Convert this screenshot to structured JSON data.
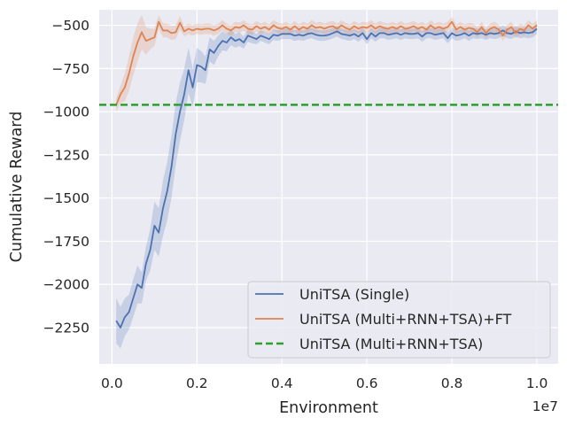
{
  "chart_data": {
    "type": "line",
    "title": "",
    "xlabel": "Environment",
    "ylabel": "Cumulative Reward",
    "x_offset_label": "1e7",
    "xlim": [
      -0.03,
      1.05
    ],
    "ylim": [
      -2460,
      -410
    ],
    "x_ticks": [
      0.0,
      0.2,
      0.4,
      0.6,
      0.8,
      1.0
    ],
    "x_tick_labels": [
      "0.0",
      "0.2",
      "0.4",
      "0.6",
      "0.8",
      "1.0"
    ],
    "y_ticks": [
      -500,
      -750,
      -1000,
      -1250,
      -1500,
      -1750,
      -2000,
      -2250
    ],
    "y_tick_labels": [
      "−500",
      "−750",
      "−1000",
      "−1250",
      "−1500",
      "−1750",
      "−2000",
      "−2250"
    ],
    "grid": true,
    "background": "#eaeaf2",
    "legend_position": "lower-right",
    "series": [
      {
        "name": "UniTSA (Single)",
        "color": "#4c72b0",
        "style": "solid",
        "x": [
          0.01,
          0.02,
          0.03,
          0.04,
          0.05,
          0.06,
          0.07,
          0.08,
          0.09,
          0.1,
          0.11,
          0.12,
          0.13,
          0.14,
          0.15,
          0.16,
          0.17,
          0.18,
          0.19,
          0.2,
          0.21,
          0.22,
          0.23,
          0.24,
          0.25,
          0.26,
          0.27,
          0.28,
          0.29,
          0.3,
          0.31,
          0.32,
          0.33,
          0.34,
          0.35,
          0.36,
          0.37,
          0.38,
          0.39,
          0.4,
          0.41,
          0.42,
          0.43,
          0.44,
          0.45,
          0.46,
          0.47,
          0.48,
          0.49,
          0.5,
          0.51,
          0.52,
          0.53,
          0.54,
          0.55,
          0.56,
          0.57,
          0.58,
          0.59,
          0.6,
          0.61,
          0.62,
          0.63,
          0.64,
          0.65,
          0.66,
          0.67,
          0.68,
          0.69,
          0.7,
          0.71,
          0.72,
          0.73,
          0.74,
          0.75,
          0.76,
          0.77,
          0.78,
          0.79,
          0.8,
          0.81,
          0.82,
          0.83,
          0.84,
          0.85,
          0.86,
          0.87,
          0.88,
          0.89,
          0.9,
          0.91,
          0.92,
          0.93,
          0.94,
          0.95,
          0.96,
          0.97,
          0.98,
          0.99,
          1.0
        ],
        "y": [
          -2210,
          -2250,
          -2190,
          -2160,
          -2080,
          -2000,
          -2020,
          -1880,
          -1800,
          -1660,
          -1700,
          -1560,
          -1460,
          -1320,
          -1130,
          -1000,
          -900,
          -760,
          -860,
          -730,
          -740,
          -760,
          -640,
          -660,
          -620,
          -590,
          -600,
          -570,
          -590,
          -580,
          -600,
          -560,
          -570,
          -580,
          -560,
          -570,
          -580,
          -555,
          -560,
          -550,
          -550,
          -550,
          -560,
          -555,
          -560,
          -550,
          -545,
          -555,
          -560,
          -560,
          -555,
          -545,
          -535,
          -550,
          -555,
          -560,
          -550,
          -565,
          -545,
          -580,
          -545,
          -565,
          -545,
          -545,
          -555,
          -550,
          -545,
          -555,
          -545,
          -550,
          -550,
          -545,
          -565,
          -545,
          -545,
          -555,
          -550,
          -545,
          -575,
          -545,
          -560,
          -555,
          -545,
          -560,
          -545,
          -550,
          -545,
          -555,
          -545,
          -550,
          -545,
          -530,
          -545,
          -550,
          -535,
          -545,
          -540,
          -545,
          -540,
          -520
        ],
        "band": [
          130,
          120,
          110,
          100,
          110,
          110,
          90,
          100,
          120,
          140,
          140,
          160,
          170,
          180,
          180,
          170,
          150,
          130,
          110,
          100,
          90,
          80,
          70,
          70,
          60,
          55,
          50,
          45,
          40,
          40,
          35,
          35,
          35,
          30,
          30,
          30,
          30,
          30,
          30,
          30,
          30,
          30,
          30,
          30,
          30,
          30,
          30,
          30,
          30,
          30,
          30,
          30,
          30,
          30,
          30,
          30,
          30,
          30,
          30,
          30,
          30,
          30,
          30,
          30,
          30,
          30,
          30,
          30,
          30,
          30,
          30,
          30,
          30,
          30,
          30,
          30,
          30,
          30,
          30,
          30,
          30,
          30,
          30,
          30,
          30,
          30,
          30,
          30,
          30,
          30,
          30,
          30,
          30,
          30,
          30,
          30,
          30,
          30,
          30,
          30
        ]
      },
      {
        "name": "UniTSA (Multi+RNN+TSA)+FT",
        "color": "#dd8452",
        "style": "solid",
        "x": [
          0.01,
          0.02,
          0.03,
          0.04,
          0.05,
          0.06,
          0.07,
          0.08,
          0.09,
          0.1,
          0.11,
          0.12,
          0.13,
          0.14,
          0.15,
          0.16,
          0.17,
          0.18,
          0.19,
          0.2,
          0.21,
          0.22,
          0.23,
          0.24,
          0.25,
          0.26,
          0.27,
          0.28,
          0.29,
          0.3,
          0.31,
          0.32,
          0.33,
          0.34,
          0.35,
          0.36,
          0.37,
          0.38,
          0.39,
          0.4,
          0.41,
          0.42,
          0.43,
          0.44,
          0.45,
          0.46,
          0.47,
          0.48,
          0.49,
          0.5,
          0.51,
          0.52,
          0.53,
          0.54,
          0.55,
          0.56,
          0.57,
          0.58,
          0.59,
          0.6,
          0.61,
          0.62,
          0.63,
          0.64,
          0.65,
          0.66,
          0.67,
          0.68,
          0.69,
          0.7,
          0.71,
          0.72,
          0.73,
          0.74,
          0.75,
          0.76,
          0.77,
          0.78,
          0.79,
          0.8,
          0.81,
          0.82,
          0.83,
          0.84,
          0.85,
          0.86,
          0.87,
          0.88,
          0.89,
          0.9,
          0.91,
          0.92,
          0.93,
          0.94,
          0.95,
          0.96,
          0.97,
          0.98,
          0.99,
          1.0
        ],
        "y": [
          -960,
          -900,
          -860,
          -780,
          -680,
          -600,
          -540,
          -590,
          -580,
          -570,
          -480,
          -530,
          -530,
          -545,
          -540,
          -485,
          -535,
          -520,
          -530,
          -520,
          -525,
          -520,
          -520,
          -530,
          -520,
          -500,
          -520,
          -530,
          -510,
          -515,
          -500,
          -520,
          -525,
          -505,
          -520,
          -510,
          -525,
          -500,
          -515,
          -520,
          -510,
          -525,
          -505,
          -525,
          -510,
          -520,
          -500,
          -515,
          -510,
          -520,
          -510,
          -505,
          -520,
          -500,
          -515,
          -525,
          -505,
          -520,
          -510,
          -515,
          -500,
          -520,
          -505,
          -515,
          -520,
          -510,
          -520,
          -505,
          -520,
          -515,
          -505,
          -520,
          -510,
          -525,
          -500,
          -520,
          -510,
          -520,
          -510,
          -480,
          -525,
          -510,
          -525,
          -515,
          -520,
          -540,
          -510,
          -545,
          -520,
          -510,
          -525,
          -560,
          -525,
          -510,
          -545,
          -520,
          -530,
          -500,
          -520,
          -500
        ],
        "band": [
          40,
          50,
          80,
          100,
          110,
          110,
          100,
          80,
          60,
          50,
          40,
          40,
          40,
          40,
          40,
          40,
          30,
          30,
          30,
          30,
          30,
          30,
          30,
          30,
          30,
          30,
          30,
          30,
          30,
          30,
          30,
          30,
          30,
          30,
          30,
          30,
          30,
          30,
          30,
          30,
          30,
          30,
          30,
          30,
          30,
          30,
          30,
          30,
          30,
          30,
          30,
          30,
          30,
          30,
          30,
          30,
          30,
          30,
          30,
          30,
          30,
          30,
          30,
          30,
          30,
          30,
          30,
          30,
          30,
          30,
          30,
          30,
          30,
          30,
          30,
          30,
          30,
          30,
          30,
          30,
          30,
          30,
          30,
          30,
          30,
          30,
          30,
          30,
          30,
          30,
          30,
          30,
          30,
          30,
          30,
          30,
          30,
          30,
          30,
          30
        ]
      },
      {
        "name": "UniTSA (Multi+RNN+TSA)",
        "color": "#2ca02c",
        "style": "dashed",
        "y": -960
      }
    ]
  }
}
